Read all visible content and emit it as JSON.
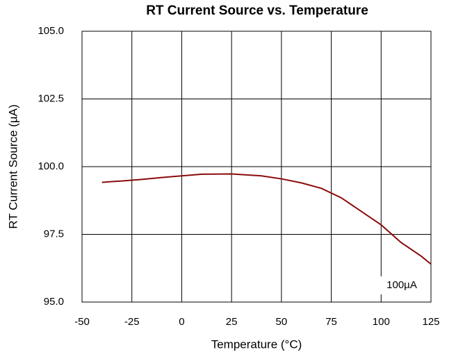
{
  "chart_data": {
    "type": "line",
    "title": "RT Current Source vs. Temperature",
    "x_label": "Temperature (°C)",
    "y_label": "RT Current Source (µA)",
    "annotation": "100µA",
    "x": [
      -40,
      -35,
      -30,
      -20,
      -10,
      0,
      10,
      25,
      40,
      50,
      60,
      70,
      80,
      90,
      100,
      110,
      120,
      125
    ],
    "series": [
      {
        "name": "100µA",
        "color": "#8b0a0a",
        "values": [
          99.42,
          99.45,
          99.47,
          99.53,
          99.6,
          99.66,
          99.72,
          99.73,
          99.66,
          99.55,
          99.4,
          99.2,
          98.85,
          98.35,
          97.85,
          97.2,
          96.7,
          96.4
        ]
      }
    ],
    "xlim": [
      -50,
      125
    ],
    "xticks": [
      -50,
      -25,
      0,
      25,
      50,
      75,
      100,
      125
    ],
    "ylim": [
      95,
      105
    ],
    "yticks": [
      {
        "value": 95,
        "label": "95.0"
      },
      97.5,
      {
        "value": 100,
        "label": "100.0"
      },
      102.5,
      {
        "value": 105,
        "label": "105.0"
      }
    ],
    "grid": true
  }
}
